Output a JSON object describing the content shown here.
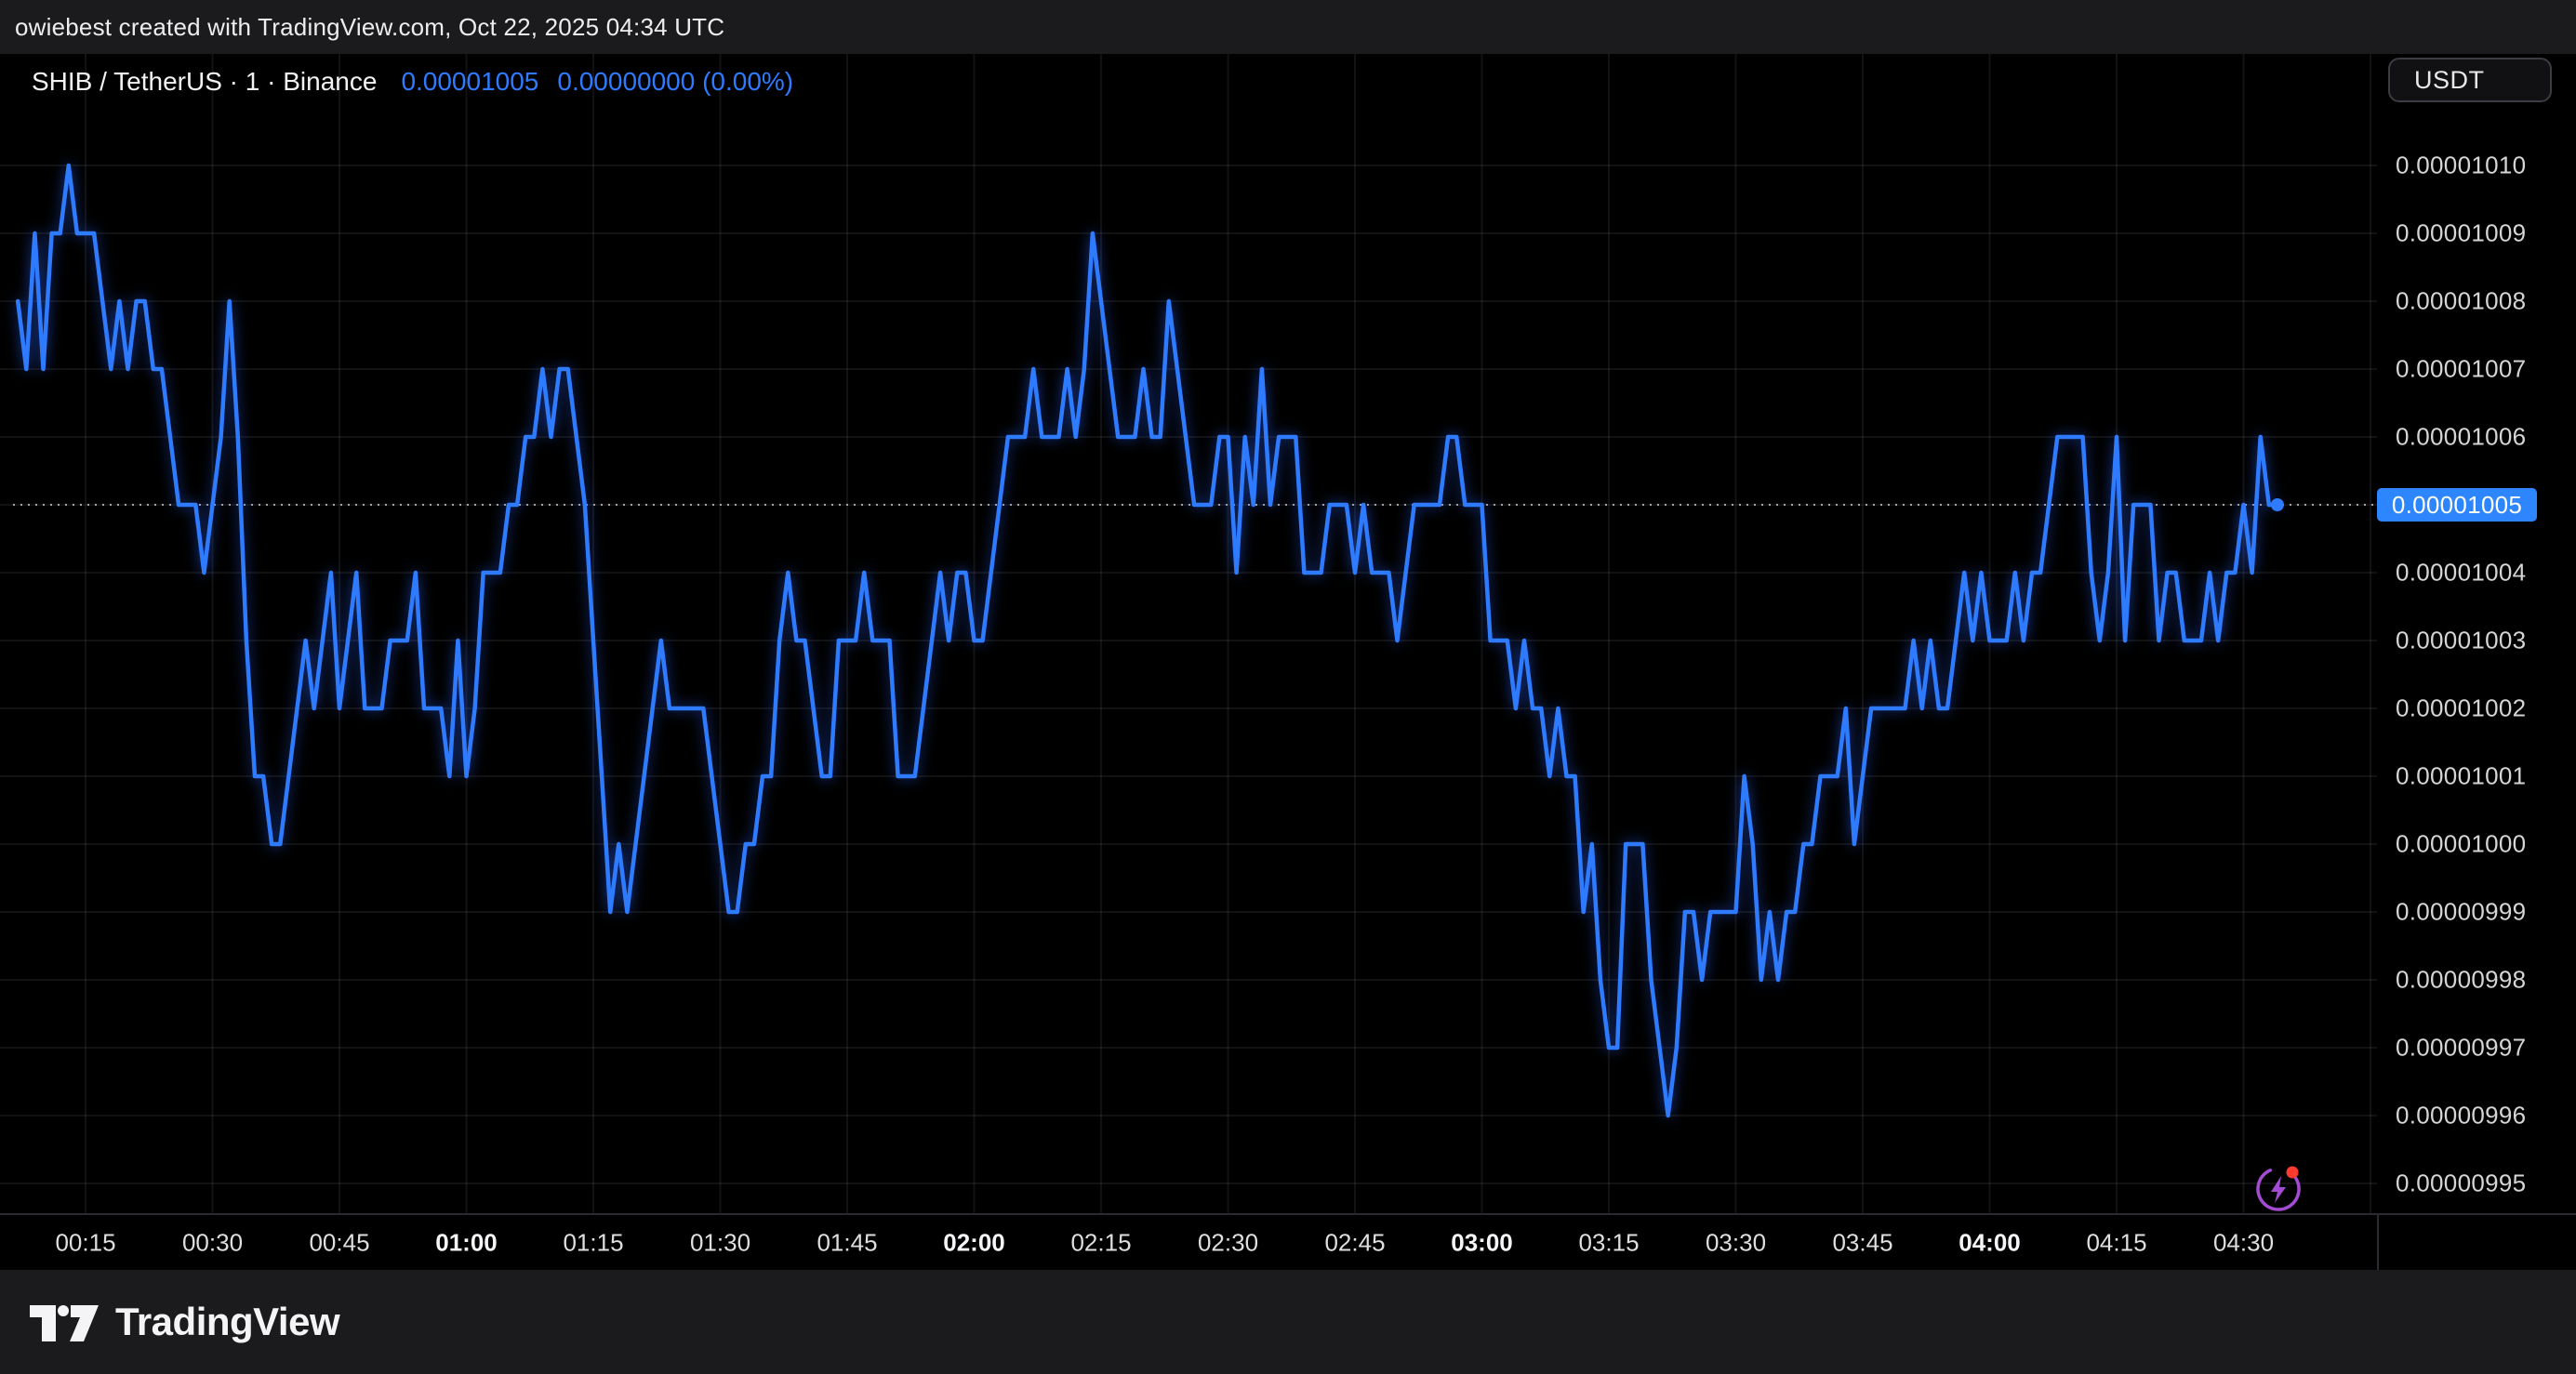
{
  "topbar": {
    "attribution": "owiebest created with TradingView.com, Oct 22, 2025 04:34 UTC"
  },
  "header": {
    "symbol": "SHIB / TetherUS · 1 · Binance",
    "last_price": "0.00001005",
    "change": "0.00000000 (0.00%)"
  },
  "price_axis": {
    "currency_button": "USDT",
    "labels": [
      "0.00001010",
      "0.00001009",
      "0.00001008",
      "0.00001007",
      "0.00001006",
      "0.00001005",
      "0.00001004",
      "0.00001003",
      "0.00001002",
      "0.00001001",
      "0.00001000",
      "0.00000999",
      "0.00000998",
      "0.00000997",
      "0.00000996",
      "0.00000995"
    ],
    "last_price_badge": "0.00001005"
  },
  "time_axis": {
    "labels": [
      {
        "text": "00:15",
        "minute": 15,
        "bold": false
      },
      {
        "text": "00:30",
        "minute": 30,
        "bold": false
      },
      {
        "text": "00:45",
        "minute": 45,
        "bold": false
      },
      {
        "text": "01:00",
        "minute": 60,
        "bold": true
      },
      {
        "text": "01:15",
        "minute": 75,
        "bold": false
      },
      {
        "text": "01:30",
        "minute": 90,
        "bold": false
      },
      {
        "text": "01:45",
        "minute": 105,
        "bold": false
      },
      {
        "text": "02:00",
        "minute": 120,
        "bold": true
      },
      {
        "text": "02:15",
        "minute": 135,
        "bold": false
      },
      {
        "text": "02:30",
        "minute": 150,
        "bold": false
      },
      {
        "text": "02:45",
        "minute": 165,
        "bold": false
      },
      {
        "text": "03:00",
        "minute": 180,
        "bold": true
      },
      {
        "text": "03:15",
        "minute": 195,
        "bold": false
      },
      {
        "text": "03:30",
        "minute": 210,
        "bold": false
      },
      {
        "text": "03:45",
        "minute": 225,
        "bold": false
      },
      {
        "text": "04:00",
        "minute": 240,
        "bold": true
      },
      {
        "text": "04:15",
        "minute": 255,
        "bold": false
      },
      {
        "text": "04:30",
        "minute": 270,
        "bold": false
      }
    ]
  },
  "footer": {
    "brand": "TradingView"
  },
  "colors": {
    "line": "#2e7bff",
    "badge": "#2e86fe",
    "accent_text": "#2e7bff",
    "grid": "rgba(255,255,255,0.07)",
    "dotted_line": "#a6a6aa",
    "panel": "#1b1b1e",
    "background": "#000000",
    "flash_icon_purple": "#a44bd3",
    "flash_icon_red": "#ff3b30"
  },
  "chart_data": {
    "type": "line",
    "title": "SHIB / TetherUS · 1 · Binance",
    "unit": "USDT",
    "interval_minutes": 1,
    "time_range": [
      "00:07",
      "04:34"
    ],
    "date": "Oct 22, 2025",
    "ylim": [
      9.95e-06,
      1.01e-05
    ],
    "y_tick_values": [
      1.01e-05,
      1.009e-05,
      1.008e-05,
      1.007e-05,
      1.006e-05,
      1.005e-05,
      1.004e-05,
      1.003e-05,
      1.002e-05,
      1.001e-05,
      1e-05,
      9.99e-06,
      9.98e-06,
      9.97e-06,
      9.96e-06,
      9.95e-06
    ],
    "x_tick_labels": [
      "00:15",
      "00:30",
      "00:45",
      "01:00",
      "01:15",
      "01:30",
      "01:45",
      "02:00",
      "02:15",
      "02:30",
      "02:45",
      "03:00",
      "03:15",
      "03:30",
      "03:45",
      "04:00",
      "04:15",
      "04:30"
    ],
    "last_value": 1.005e-05,
    "grid": true,
    "legend_position": "none",
    "start_minute": 7,
    "series": [
      {
        "name": "SHIB/TetherUS close (price × 1e-8)",
        "values_e8": [
          1008,
          1007,
          1009,
          1007,
          1009,
          1009,
          1010,
          1009,
          1009,
          1009,
          1008,
          1007,
          1008,
          1007,
          1008,
          1008,
          1007,
          1007,
          1006,
          1005,
          1005,
          1005,
          1004,
          1005,
          1006,
          1008,
          1006,
          1003,
          1001,
          1001,
          1000,
          1000,
          1001,
          1002,
          1003,
          1002,
          1003,
          1004,
          1002,
          1003,
          1004,
          1002,
          1002,
          1002,
          1003,
          1003,
          1003,
          1004,
          1002,
          1002,
          1002,
          1001,
          1003,
          1001,
          1002,
          1004,
          1004,
          1004,
          1005,
          1005,
          1006,
          1006,
          1007,
          1006,
          1007,
          1007,
          1006,
          1005,
          1003,
          1001,
          999,
          1000,
          999,
          1000,
          1001,
          1002,
          1003,
          1002,
          1002,
          1002,
          1002,
          1002,
          1001,
          1000,
          999,
          999,
          1000,
          1000,
          1001,
          1001,
          1003,
          1004,
          1003,
          1003,
          1002,
          1001,
          1001,
          1003,
          1003,
          1003,
          1004,
          1003,
          1003,
          1003,
          1001,
          1001,
          1001,
          1002,
          1003,
          1004,
          1003,
          1004,
          1004,
          1003,
          1003,
          1004,
          1005,
          1006,
          1006,
          1006,
          1007,
          1006,
          1006,
          1006,
          1007,
          1006,
          1007,
          1009,
          1008,
          1007,
          1006,
          1006,
          1006,
          1007,
          1006,
          1006,
          1008,
          1007,
          1006,
          1005,
          1005,
          1005,
          1006,
          1006,
          1004,
          1006,
          1005,
          1007,
          1005,
          1006,
          1006,
          1006,
          1004,
          1004,
          1004,
          1005,
          1005,
          1005,
          1004,
          1005,
          1004,
          1004,
          1004,
          1003,
          1004,
          1005,
          1005,
          1005,
          1005,
          1006,
          1006,
          1005,
          1005,
          1005,
          1003,
          1003,
          1003,
          1002,
          1003,
          1002,
          1002,
          1001,
          1002,
          1001,
          1001,
          999,
          1000,
          998,
          997,
          997,
          1000,
          1000,
          1000,
          998,
          997,
          996,
          997,
          999,
          999,
          998,
          999,
          999,
          999,
          999,
          1001,
          1000,
          998,
          999,
          998,
          999,
          999,
          1000,
          1000,
          1001,
          1001,
          1001,
          1002,
          1000,
          1001,
          1002,
          1002,
          1002,
          1002,
          1002,
          1003,
          1002,
          1003,
          1002,
          1002,
          1003,
          1004,
          1003,
          1004,
          1003,
          1003,
          1003,
          1004,
          1003,
          1004,
          1004,
          1005,
          1006,
          1006,
          1006,
          1006,
          1004,
          1003,
          1004,
          1006,
          1003,
          1005,
          1005,
          1005,
          1003,
          1004,
          1004,
          1003,
          1003,
          1003,
          1004,
          1003,
          1004,
          1004,
          1005,
          1004,
          1006,
          1005,
          1005
        ]
      }
    ]
  }
}
